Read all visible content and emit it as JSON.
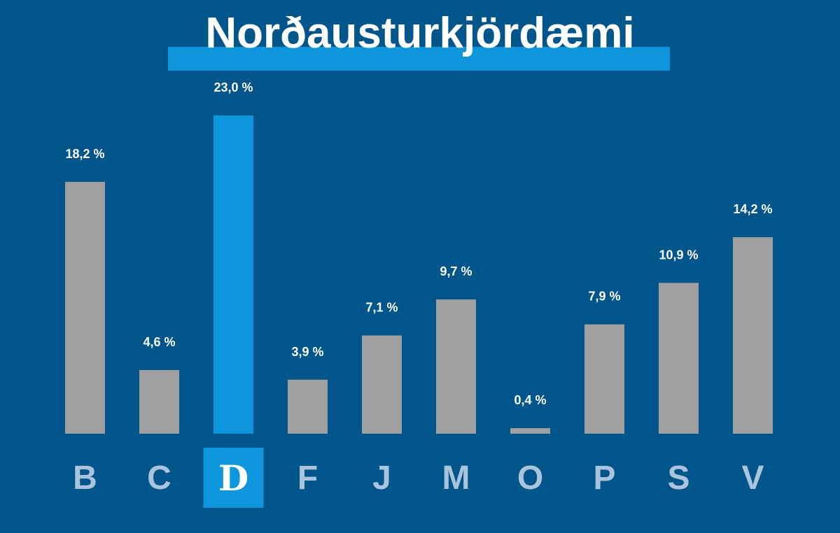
{
  "title": "Norðausturkjördæmi",
  "colors": {
    "background": "#00558a",
    "bar": "#a0a0a0",
    "highlight_bar": "#0e96dc",
    "highlight_label_bg": "#0e96dc",
    "title_underline": "#0e96dc",
    "value_label": "#ffffff",
    "category_label": "#a9c4dc",
    "highlight_label_text": "#ffffff"
  },
  "chart_data": {
    "type": "bar",
    "title": "Norðausturkjördæmi",
    "categories": [
      "B",
      "C",
      "D",
      "F",
      "J",
      "M",
      "O",
      "P",
      "S",
      "V"
    ],
    "values": [
      18.2,
      4.6,
      23.0,
      3.9,
      7.1,
      9.7,
      0.4,
      7.9,
      10.9,
      14.2
    ],
    "value_labels": [
      "18,2 %",
      "4,6 %",
      "23,0 %",
      "3,9 %",
      "7,1 %",
      "9,7 %",
      "0,4 %",
      "7,9 %",
      "10,9 %",
      "14,2 %"
    ],
    "highlight": "D",
    "ylim": [
      0,
      23.0
    ],
    "grid": false,
    "xlabel": "",
    "ylabel": ""
  }
}
